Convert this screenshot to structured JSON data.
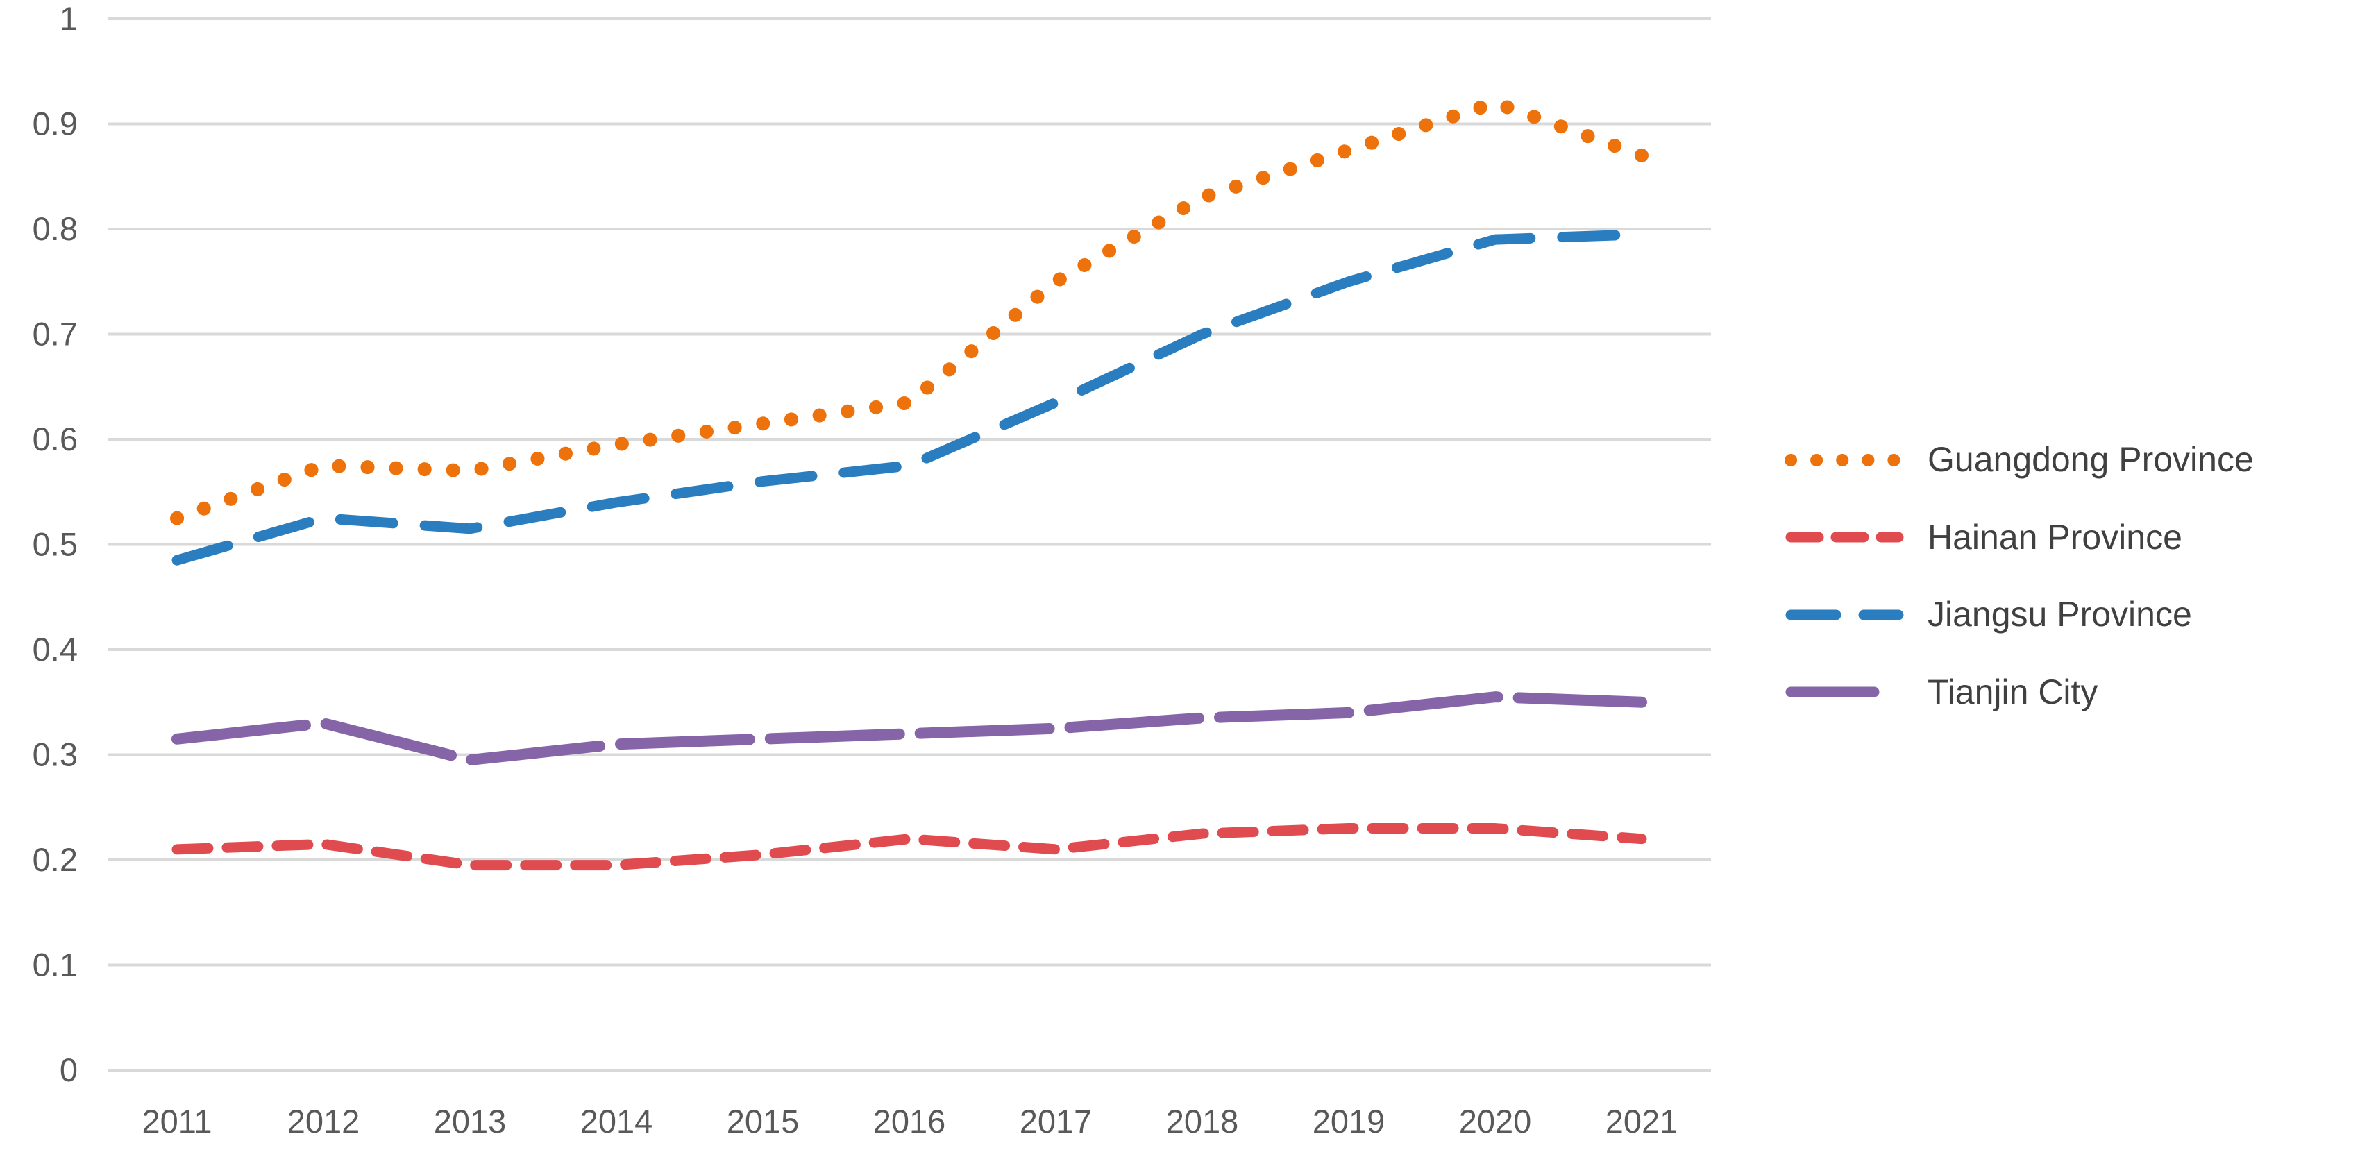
{
  "page": {
    "background": "#ffffff"
  },
  "chart_data": {
    "type": "line",
    "title": "",
    "xlabel": "",
    "ylabel": "",
    "x_categories": [
      "2011",
      "2012",
      "2013",
      "2014",
      "2015",
      "2016",
      "2017",
      "2018",
      "2019",
      "2020",
      "2021"
    ],
    "y_ticks_top_down": [
      "1",
      "0.9",
      "0.8",
      "0.7",
      "0.6",
      "0.5",
      "0.4",
      "0.3",
      "0.2",
      "0.1",
      "0"
    ],
    "ylim": [
      0,
      1
    ],
    "grid": "horizontal-only",
    "legend_position": "right-middle",
    "axis_color": "#595959",
    "gridline_color": "#D9D9D9",
    "legend_text_color": "#404040",
    "series": [
      {
        "name": "Guangdong Province",
        "color": "#ED720B",
        "dash": "dotted",
        "values": [
          0.525,
          0.575,
          0.57,
          0.595,
          0.615,
          0.635,
          0.75,
          0.83,
          0.875,
          0.92,
          0.87
        ]
      },
      {
        "name": "Hainan Province",
        "color": "#E04B50",
        "dash": "dashed",
        "values": [
          0.21,
          0.215,
          0.195,
          0.195,
          0.205,
          0.22,
          0.21,
          0.225,
          0.23,
          0.23,
          0.22
        ]
      },
      {
        "name": "Jiangsu Province",
        "color": "#2A7DBE",
        "dash": "long-dash",
        "values": [
          0.485,
          0.525,
          0.515,
          0.54,
          0.56,
          0.575,
          0.635,
          0.7,
          0.75,
          0.79,
          0.795
        ]
      },
      {
        "name": "Tianjin City",
        "color": "#8664A8",
        "dash": "long-dash-solid",
        "values": [
          0.315,
          0.33,
          0.295,
          0.31,
          0.315,
          0.32,
          0.325,
          0.335,
          0.34,
          0.355,
          0.35
        ]
      }
    ]
  }
}
